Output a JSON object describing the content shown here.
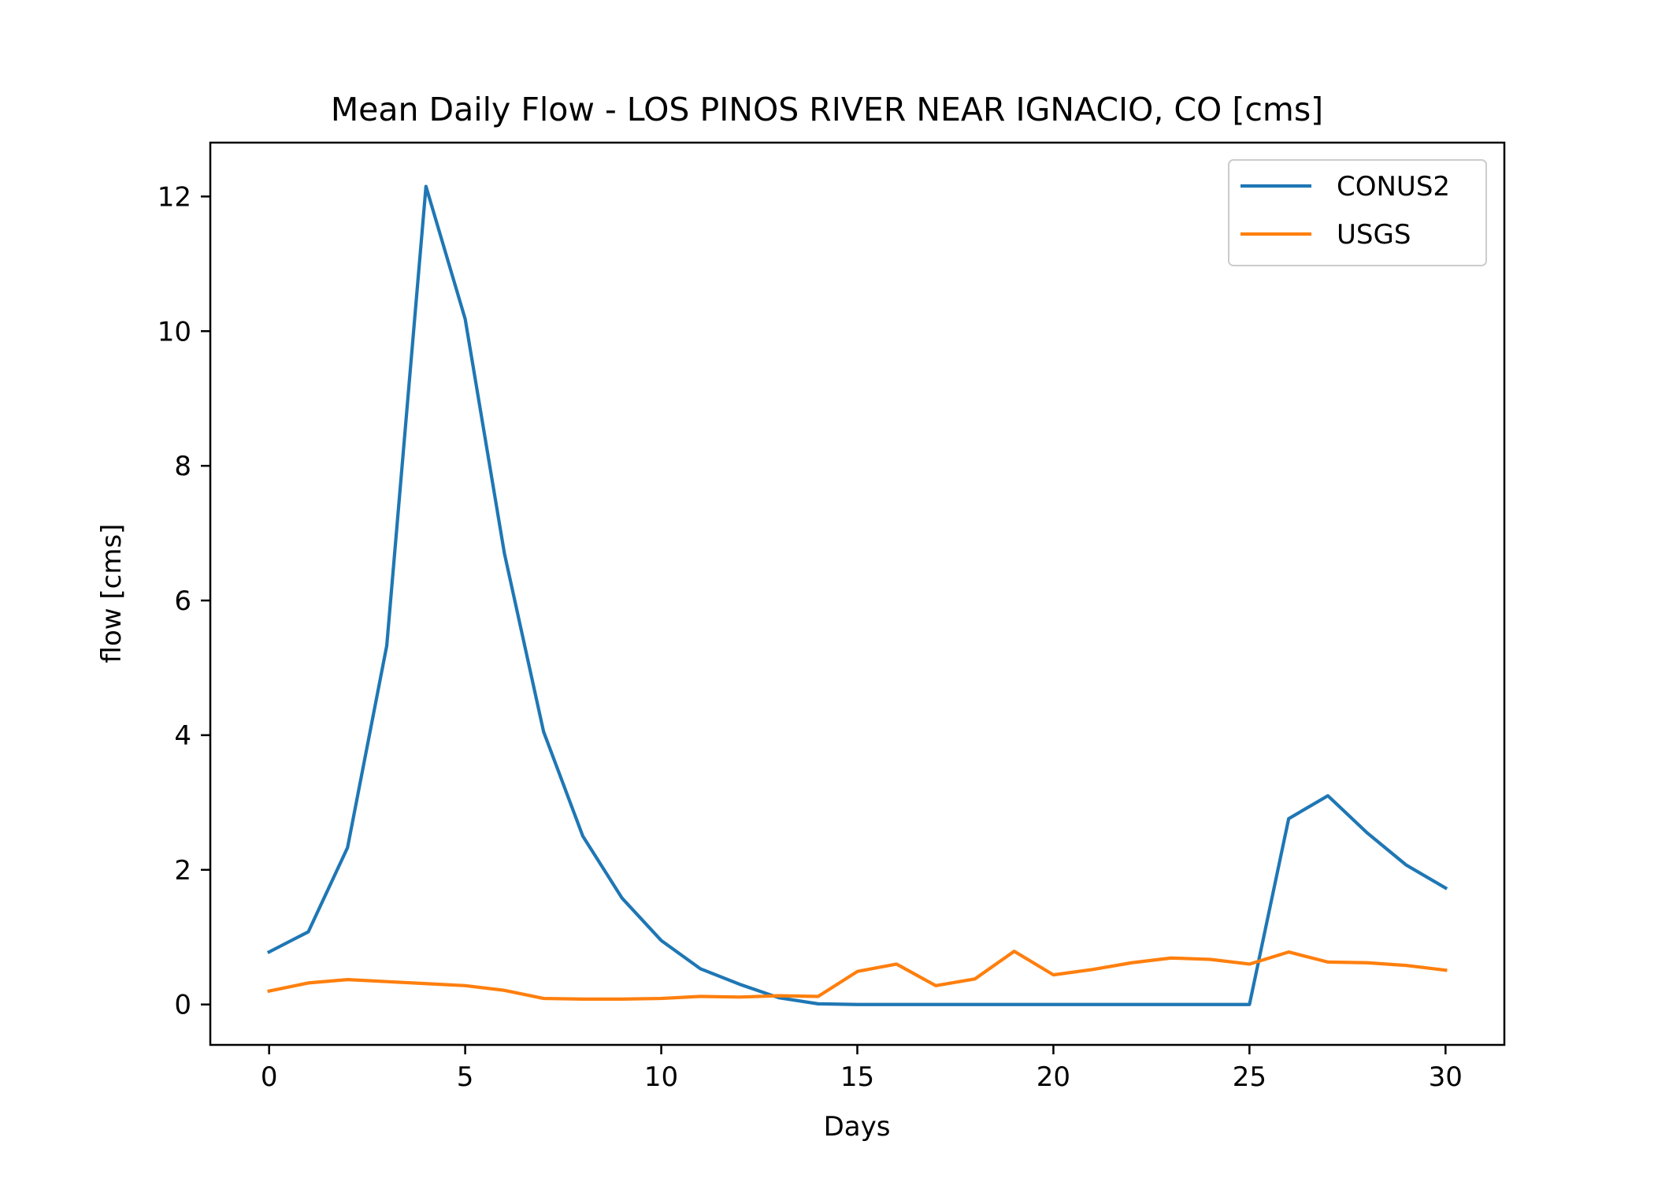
{
  "chart_data": {
    "type": "line",
    "title": "Mean Daily Flow - LOS PINOS RIVER NEAR IGNACIO, CO [cms]",
    "xlabel": "Days",
    "ylabel": "flow [cms]",
    "xlim": [
      -1.5,
      31.5
    ],
    "ylim": [
      -0.6,
      12.8
    ],
    "xticks": [
      0,
      5,
      10,
      15,
      20,
      25,
      30
    ],
    "yticks": [
      0,
      2,
      4,
      6,
      8,
      10,
      12
    ],
    "xtick_labels": [
      "0",
      "5",
      "10",
      "15",
      "20",
      "25",
      "30"
    ],
    "ytick_labels": [
      "0",
      "2",
      "4",
      "6",
      "8",
      "10",
      "12"
    ],
    "grid": false,
    "legend_position": "top-right",
    "x": [
      0,
      1,
      2,
      3,
      4,
      5,
      6,
      7,
      8,
      9,
      10,
      11,
      12,
      13,
      14,
      15,
      16,
      17,
      18,
      19,
      20,
      21,
      22,
      23,
      24,
      25,
      26,
      27,
      28,
      29,
      30
    ],
    "series": [
      {
        "name": "CONUS2",
        "color": "#1f77b4",
        "values": [
          0.78,
          1.08,
          2.33,
          5.33,
          12.15,
          10.18,
          6.7,
          4.05,
          2.5,
          1.58,
          0.95,
          0.53,
          0.3,
          0.1,
          0.01,
          0.0,
          0.0,
          0.0,
          0.0,
          0.0,
          0.0,
          0.0,
          0.0,
          0.0,
          0.0,
          0.0,
          2.76,
          3.1,
          2.55,
          2.07,
          1.73
        ]
      },
      {
        "name": "USGS",
        "color": "#ff7f0e",
        "values": [
          0.2,
          0.32,
          0.37,
          0.34,
          0.31,
          0.28,
          0.21,
          0.09,
          0.08,
          0.08,
          0.09,
          0.12,
          0.11,
          0.13,
          0.12,
          0.49,
          0.6,
          0.28,
          0.38,
          0.79,
          0.44,
          0.52,
          0.62,
          0.69,
          0.67,
          0.6,
          0.78,
          0.63,
          0.62,
          0.58,
          0.51
        ]
      }
    ]
  }
}
